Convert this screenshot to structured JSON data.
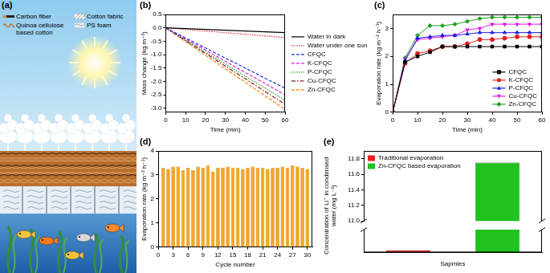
{
  "diagram": {
    "title": "(a)",
    "labels": [
      "Carbon fiber",
      "Quinoa cellulose based cotton",
      "Cotton fabric",
      "PS foam"
    ]
  },
  "chart_data": [
    {
      "type": "line",
      "title": "(b)",
      "x_label": "Time (min)",
      "y_label": "Mass change (kg m⁻²)",
      "x": [
        0,
        10,
        20,
        30,
        40,
        50,
        60
      ],
      "xlim": [
        0,
        60
      ],
      "xticks": [
        0,
        10,
        20,
        30,
        40,
        50,
        60
      ],
      "ylim": [
        -3.15,
        0.5
      ],
      "yticks": [
        {
          "value": -3,
          "label": "-3.0"
        },
        -2.5,
        {
          "value": -2,
          "label": "-2.0"
        },
        -1.5,
        {
          "value": -1,
          "label": "-1.0"
        },
        -0.5,
        {
          "value": 0,
          "label": "0.0"
        },
        0.5
      ],
      "grid": false,
      "legend": "right",
      "series": [
        {
          "name": "Water in dark",
          "color": "#000000",
          "line_style": "solid",
          "values": [
            0,
            -0.03,
            -0.06,
            -0.09,
            -0.12,
            -0.15,
            -0.18
          ]
        },
        {
          "name": "Water under one sun",
          "color": "#e03030",
          "line_style": "dotted",
          "values": [
            0,
            -0.06,
            -0.12,
            -0.18,
            -0.24,
            -0.3,
            -0.36
          ]
        },
        {
          "name": "CFQC",
          "color": "#2030e0",
          "line_style": "dashed",
          "values": [
            0,
            -0.38,
            -0.75,
            -1.13,
            -1.5,
            -1.88,
            -2.25
          ]
        },
        {
          "name": "K-CFQC",
          "color": "#e020e0",
          "line_style": "dashed",
          "values": [
            0,
            -0.42,
            -0.83,
            -1.25,
            -1.67,
            -2.08,
            -2.5
          ]
        },
        {
          "name": "P-CFQC",
          "color": "#20a020",
          "line_style": "dotted",
          "values": [
            0,
            -0.45,
            -0.9,
            -1.35,
            -1.8,
            -2.25,
            -2.7
          ]
        },
        {
          "name": "Cu-CFQC",
          "color": "#8b1a1a",
          "line_style": "dashdot",
          "values": [
            0,
            -0.48,
            -0.95,
            -1.43,
            -1.9,
            -2.38,
            -2.85
          ]
        },
        {
          "name": "Zn-CFQC",
          "color": "#ff8000",
          "line_style": "dashed",
          "values": [
            0,
            -0.51,
            -1.02,
            -1.53,
            -2.03,
            -2.54,
            -3.05
          ]
        }
      ]
    },
    {
      "type": "line",
      "title": "(c)",
      "x_label": "Time (min)",
      "y_label": "Evaporation rate (kg m⁻² h⁻¹)",
      "x": [
        0,
        5,
        10,
        15,
        20,
        25,
        30,
        35,
        40,
        45,
        50,
        55,
        60
      ],
      "xlim": [
        0,
        60
      ],
      "xticks": [
        0,
        10,
        20,
        30,
        40,
        50,
        60
      ],
      "ylim": [
        0,
        3.5
      ],
      "yticks": [
        0,
        1,
        2,
        3
      ],
      "grid": false,
      "legend": "lower right",
      "series": [
        {
          "name": "CFQC",
          "color": "#000000",
          "marker": "square",
          "line_style": "solid",
          "values": [
            0,
            1.8,
            2.0,
            2.15,
            2.35,
            2.35,
            2.35,
            2.35,
            2.35,
            2.35,
            2.35,
            2.35,
            2.35
          ]
        },
        {
          "name": "K-CFQC",
          "color": "#e02020",
          "marker": "circle",
          "line_style": "solid",
          "values": [
            0,
            1.75,
            2.1,
            2.2,
            2.35,
            2.35,
            2.45,
            2.6,
            2.6,
            2.65,
            2.7,
            2.7,
            2.7
          ]
        },
        {
          "name": "P-CFQC",
          "color": "#2020e0",
          "marker": "triangle",
          "line_style": "solid",
          "values": [
            0,
            1.85,
            2.65,
            2.7,
            2.75,
            2.75,
            2.8,
            2.85,
            2.85,
            2.85,
            2.85,
            2.85,
            2.85
          ]
        },
        {
          "name": "Cu-CFQC",
          "color": "#e020e0",
          "marker": "triangle_down",
          "line_style": "solid",
          "values": [
            0,
            1.9,
            2.6,
            2.65,
            2.7,
            2.75,
            2.95,
            3.0,
            3.15,
            3.15,
            3.15,
            3.15,
            3.15
          ]
        },
        {
          "name": "Zn-CFQC",
          "color": "#20a020",
          "marker": "diamond",
          "line_style": "solid",
          "values": [
            0,
            1.95,
            2.75,
            3.1,
            3.1,
            3.15,
            3.25,
            3.35,
            3.4,
            3.4,
            3.4,
            3.4,
            3.4
          ]
        }
      ]
    },
    {
      "type": "bar",
      "title": "(d)",
      "x_label": "Cycle number",
      "y_label": "Evaporation rate (kg m⁻² h⁻¹)",
      "x": [
        1,
        2,
        3,
        4,
        5,
        6,
        7,
        8,
        9,
        10,
        11,
        12,
        13,
        14,
        15,
        16,
        17,
        18,
        19,
        20,
        21,
        22,
        23,
        24,
        25,
        26,
        27,
        28,
        29,
        30
      ],
      "values": [
        3.3,
        3.25,
        3.35,
        3.35,
        3.2,
        3.3,
        3.2,
        3.35,
        3.3,
        3.4,
        3.15,
        3.3,
        3.3,
        3.35,
        3.3,
        3.3,
        3.25,
        3.3,
        3.35,
        3.3,
        3.3,
        3.25,
        3.3,
        3.3,
        3.35,
        3.3,
        3.4,
        3.35,
        3.3,
        3.25
      ],
      "color": "#f5a623",
      "xlim": [
        0,
        31
      ],
      "xticks": [
        0,
        3,
        6,
        9,
        12,
        15,
        18,
        21,
        24,
        27,
        30
      ],
      "ylim": [
        0,
        4
      ],
      "yticks": [
        0,
        1,
        2,
        3,
        4
      ],
      "grid": false
    },
    {
      "type": "bar",
      "title": "(e)",
      "x_label": "Sapmles",
      "y_label": "Concentration of Li⁺ in condensed water (mg L⁻¹)",
      "categories": [
        null,
        null
      ],
      "ylim": [
        0,
        11.9
      ],
      "y_break": [
        1,
        11.0
      ],
      "yticks": [
        {
          "value": 11,
          "label": "11.0"
        },
        11.2,
        11.4,
        11.6,
        11.8
      ],
      "grid": false,
      "legend": "upper left",
      "series": [
        {
          "name": "Traditional evaporation",
          "color": "#ee1c1c",
          "values": [
            0.1,
            null
          ]
        },
        {
          "name": "Zn-CFQC based evaporation",
          "color": "#1fc21f",
          "values": [
            null,
            11.75
          ]
        }
      ]
    }
  ]
}
